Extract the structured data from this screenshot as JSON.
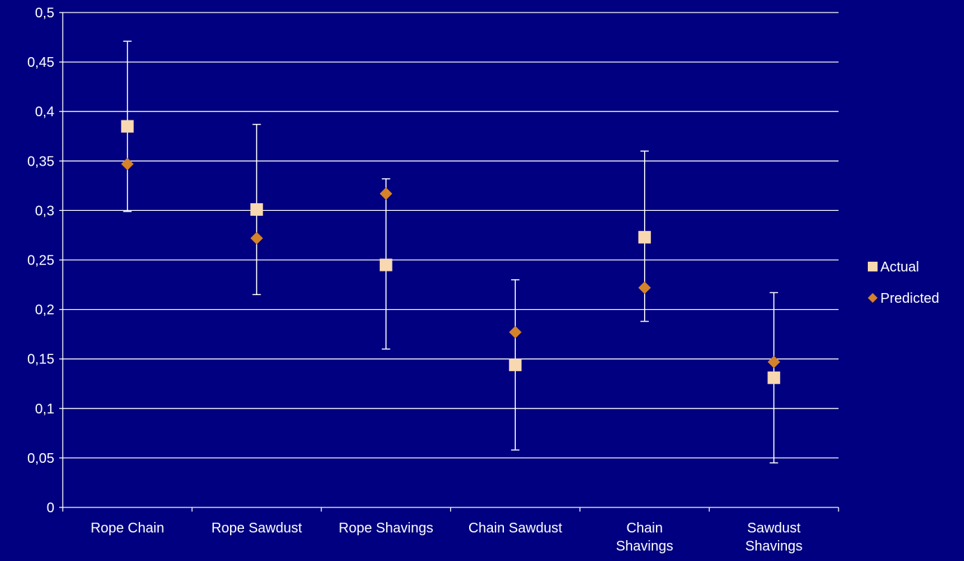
{
  "chart_data": {
    "type": "scatter",
    "categories": [
      [
        "Rope Chain"
      ],
      [
        "Rope Sawdust"
      ],
      [
        "Rope Shavings"
      ],
      [
        "Chain Sawdust"
      ],
      [
        "Chain",
        "Shavings"
      ],
      [
        "Sawdust",
        "Shavings"
      ]
    ],
    "ylim": [
      0,
      0.5
    ],
    "y_ticks": [
      "0",
      "0,05",
      "0,1",
      "0,15",
      "0,2",
      "0,25",
      "0,3",
      "0,35",
      "0,4",
      "0,45",
      "0,5"
    ],
    "grid": true,
    "legend_position": "right",
    "series": [
      {
        "name": "Actual",
        "marker": "square",
        "color": "#F8D8B0",
        "values": [
          0.385,
          0.301,
          0.245,
          0.144,
          0.273,
          0.131
        ],
        "error_low": [
          0.299,
          0.215,
          0.16,
          0.058,
          0.188,
          0.045
        ],
        "error_high": [
          0.471,
          0.387,
          0.332,
          0.23,
          0.36,
          0.217
        ]
      },
      {
        "name": "Predicted",
        "marker": "diamond",
        "color": "#D4832A",
        "values": [
          0.347,
          0.272,
          0.317,
          0.177,
          0.222,
          0.147
        ]
      }
    ]
  }
}
